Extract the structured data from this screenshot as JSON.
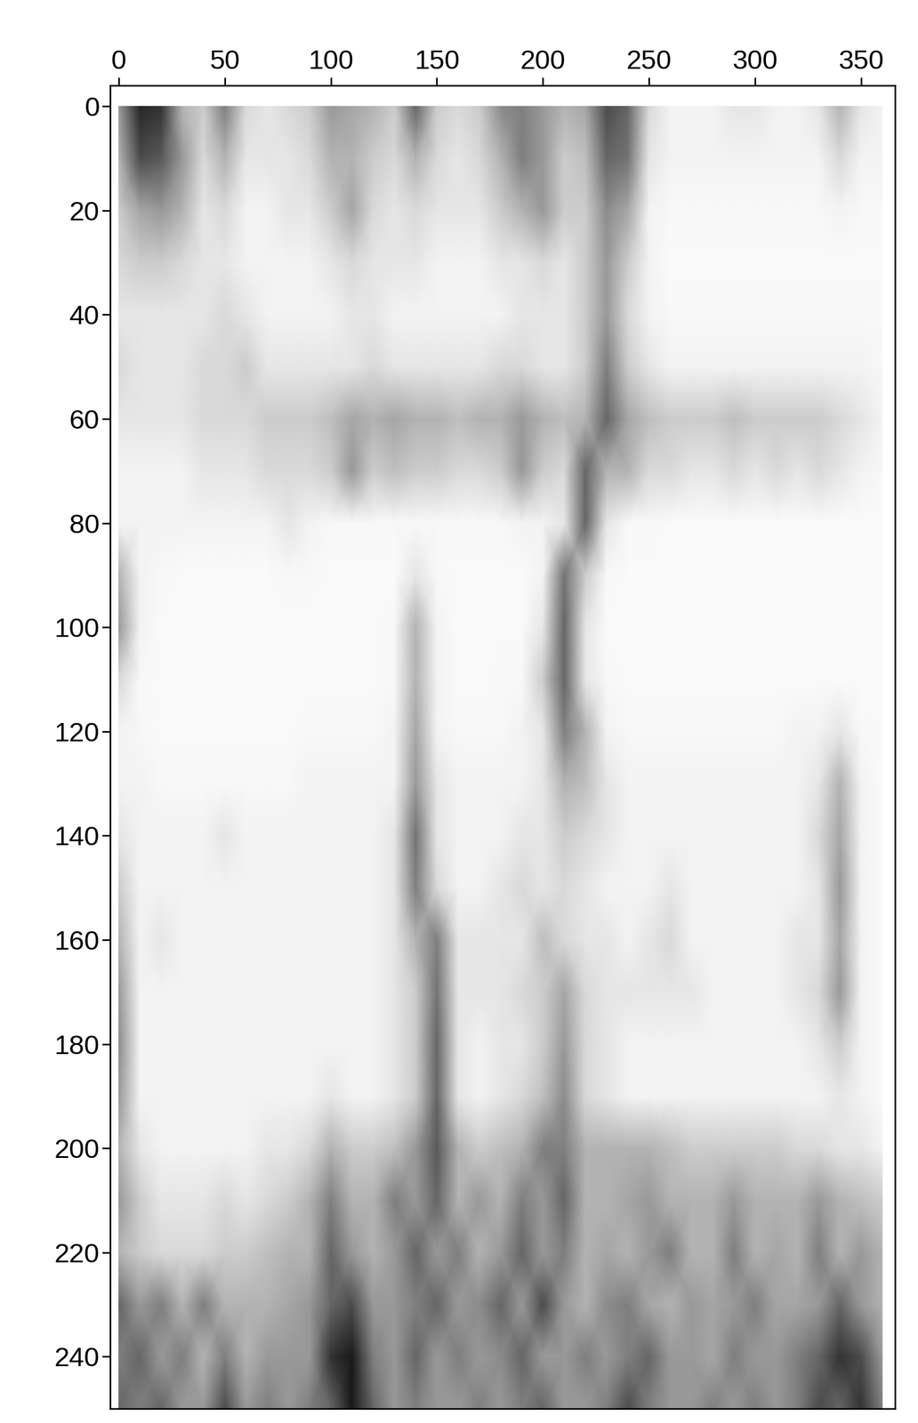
{
  "chart_data": {
    "type": "heatmap",
    "x": [
      0,
      10,
      20,
      30,
      40,
      50,
      60,
      70,
      80,
      90,
      100,
      110,
      120,
      130,
      140,
      150,
      160,
      170,
      180,
      190,
      200,
      210,
      220,
      230,
      240,
      250,
      260,
      270,
      280,
      290,
      300,
      310,
      320,
      330,
      340,
      350,
      360
    ],
    "y": [
      0,
      10,
      20,
      30,
      40,
      50,
      60,
      70,
      80,
      90,
      100,
      110,
      120,
      130,
      140,
      150,
      160,
      170,
      180,
      190,
      200,
      210,
      220,
      230,
      240,
      250
    ],
    "xlim": [
      -4,
      366
    ],
    "ylim": [
      250,
      -4
    ],
    "xticks": [
      0,
      50,
      100,
      150,
      200,
      250,
      300,
      350
    ],
    "yticks": [
      0,
      20,
      40,
      60,
      80,
      100,
      120,
      140,
      160,
      180,
      200,
      220,
      240
    ],
    "clim": [
      0,
      1
    ],
    "color": "gray_r",
    "cells": [
      [
        0.4,
        0.85,
        0.8,
        0.3,
        0.2,
        0.5,
        0.15,
        0.1,
        0.15,
        0.2,
        0.4,
        0.35,
        0.3,
        0.2,
        0.6,
        0.2,
        0.15,
        0.2,
        0.45,
        0.5,
        0.4,
        0.3,
        0.35,
        0.7,
        0.6,
        0.15,
        0.05,
        0.05,
        0.05,
        0.1,
        0.1,
        0.05,
        0.05,
        0.1,
        0.3,
        0.1,
        0.05
      ],
      [
        0.3,
        0.7,
        0.65,
        0.4,
        0.15,
        0.3,
        0.1,
        0.1,
        0.1,
        0.15,
        0.3,
        0.3,
        0.2,
        0.15,
        0.3,
        0.15,
        0.1,
        0.15,
        0.3,
        0.5,
        0.4,
        0.2,
        0.25,
        0.6,
        0.55,
        0.1,
        0.05,
        0.05,
        0.05,
        0.05,
        0.05,
        0.05,
        0.05,
        0.05,
        0.15,
        0.05,
        0.05
      ],
      [
        0.2,
        0.35,
        0.4,
        0.3,
        0.1,
        0.15,
        0.05,
        0.05,
        0.1,
        0.1,
        0.2,
        0.35,
        0.15,
        0.1,
        0.15,
        0.1,
        0.1,
        0.1,
        0.2,
        0.3,
        0.4,
        0.2,
        0.2,
        0.45,
        0.35,
        0.05,
        0.03,
        0.03,
        0.03,
        0.03,
        0.03,
        0.03,
        0.03,
        0.03,
        0.05,
        0.03,
        0.03
      ],
      [
        0.15,
        0.2,
        0.2,
        0.15,
        0.1,
        0.1,
        0.05,
        0.05,
        0.05,
        0.05,
        0.1,
        0.15,
        0.1,
        0.1,
        0.1,
        0.05,
        0.05,
        0.05,
        0.1,
        0.1,
        0.15,
        0.1,
        0.2,
        0.4,
        0.2,
        0.05,
        0.02,
        0.02,
        0.02,
        0.02,
        0.02,
        0.02,
        0.02,
        0.02,
        0.02,
        0.02,
        0.02
      ],
      [
        0.1,
        0.1,
        0.1,
        0.1,
        0.1,
        0.15,
        0.1,
        0.05,
        0.05,
        0.05,
        0.05,
        0.1,
        0.1,
        0.05,
        0.05,
        0.05,
        0.05,
        0.05,
        0.05,
        0.1,
        0.1,
        0.1,
        0.2,
        0.4,
        0.15,
        0.05,
        0.03,
        0.03,
        0.03,
        0.03,
        0.03,
        0.03,
        0.03,
        0.03,
        0.03,
        0.03,
        0.03
      ],
      [
        0.15,
        0.1,
        0.1,
        0.1,
        0.15,
        0.15,
        0.2,
        0.1,
        0.1,
        0.1,
        0.1,
        0.1,
        0.15,
        0.1,
        0.1,
        0.1,
        0.1,
        0.1,
        0.15,
        0.15,
        0.1,
        0.1,
        0.2,
        0.5,
        0.2,
        0.1,
        0.05,
        0.05,
        0.05,
        0.05,
        0.05,
        0.05,
        0.05,
        0.05,
        0.05,
        0.05,
        0.03
      ],
      [
        0.1,
        0.1,
        0.1,
        0.1,
        0.15,
        0.15,
        0.15,
        0.2,
        0.2,
        0.2,
        0.25,
        0.35,
        0.3,
        0.35,
        0.3,
        0.3,
        0.25,
        0.3,
        0.3,
        0.4,
        0.3,
        0.25,
        0.3,
        0.6,
        0.35,
        0.25,
        0.2,
        0.2,
        0.2,
        0.25,
        0.2,
        0.2,
        0.2,
        0.2,
        0.15,
        0.1,
        0.05
      ],
      [
        0.05,
        0.05,
        0.05,
        0.05,
        0.1,
        0.1,
        0.1,
        0.15,
        0.15,
        0.15,
        0.2,
        0.4,
        0.2,
        0.25,
        0.2,
        0.2,
        0.15,
        0.15,
        0.2,
        0.4,
        0.2,
        0.15,
        0.6,
        0.3,
        0.3,
        0.15,
        0.15,
        0.1,
        0.1,
        0.15,
        0.1,
        0.15,
        0.1,
        0.15,
        0.1,
        0.05,
        0.03
      ],
      [
        0.05,
        0.05,
        0.05,
        0.05,
        0.05,
        0.05,
        0.05,
        0.05,
        0.1,
        0.05,
        0.03,
        0.03,
        0.03,
        0.03,
        0.03,
        0.03,
        0.03,
        0.03,
        0.03,
        0.05,
        0.05,
        0.1,
        0.6,
        0.1,
        0.03,
        0.03,
        0.02,
        0.02,
        0.02,
        0.02,
        0.02,
        0.02,
        0.02,
        0.02,
        0.02,
        0.02,
        0.02
      ],
      [
        0.3,
        0.05,
        0.03,
        0.02,
        0.02,
        0.02,
        0.02,
        0.02,
        0.03,
        0.03,
        0.02,
        0.02,
        0.02,
        0.02,
        0.1,
        0.03,
        0.02,
        0.02,
        0.02,
        0.02,
        0.05,
        0.55,
        0.2,
        0.03,
        0.02,
        0.02,
        0.02,
        0.02,
        0.02,
        0.02,
        0.02,
        0.02,
        0.02,
        0.02,
        0.02,
        0.02,
        0.02
      ],
      [
        0.4,
        0.05,
        0.02,
        0.02,
        0.02,
        0.02,
        0.02,
        0.02,
        0.02,
        0.02,
        0.02,
        0.02,
        0.02,
        0.03,
        0.3,
        0.05,
        0.02,
        0.02,
        0.02,
        0.02,
        0.1,
        0.6,
        0.1,
        0.02,
        0.02,
        0.02,
        0.02,
        0.02,
        0.02,
        0.02,
        0.02,
        0.02,
        0.02,
        0.02,
        0.02,
        0.02,
        0.02
      ],
      [
        0.15,
        0.03,
        0.02,
        0.02,
        0.02,
        0.02,
        0.02,
        0.02,
        0.02,
        0.02,
        0.02,
        0.02,
        0.02,
        0.03,
        0.3,
        0.05,
        0.02,
        0.02,
        0.03,
        0.03,
        0.2,
        0.6,
        0.1,
        0.03,
        0.02,
        0.02,
        0.02,
        0.02,
        0.02,
        0.02,
        0.02,
        0.02,
        0.02,
        0.02,
        0.02,
        0.02,
        0.02
      ],
      [
        0.05,
        0.03,
        0.02,
        0.02,
        0.02,
        0.02,
        0.02,
        0.02,
        0.02,
        0.03,
        0.03,
        0.03,
        0.03,
        0.05,
        0.35,
        0.05,
        0.03,
        0.03,
        0.03,
        0.05,
        0.1,
        0.5,
        0.3,
        0.05,
        0.03,
        0.03,
        0.03,
        0.03,
        0.03,
        0.03,
        0.03,
        0.03,
        0.05,
        0.05,
        0.1,
        0.03,
        0.02
      ],
      [
        0.05,
        0.05,
        0.03,
        0.03,
        0.03,
        0.03,
        0.03,
        0.03,
        0.03,
        0.05,
        0.05,
        0.05,
        0.05,
        0.05,
        0.4,
        0.1,
        0.05,
        0.05,
        0.05,
        0.05,
        0.1,
        0.3,
        0.25,
        0.1,
        0.05,
        0.05,
        0.05,
        0.05,
        0.05,
        0.05,
        0.05,
        0.05,
        0.05,
        0.1,
        0.3,
        0.05,
        0.02
      ],
      [
        0.1,
        0.05,
        0.05,
        0.05,
        0.05,
        0.1,
        0.05,
        0.05,
        0.05,
        0.05,
        0.05,
        0.05,
        0.05,
        0.1,
        0.55,
        0.1,
        0.05,
        0.05,
        0.05,
        0.1,
        0.1,
        0.2,
        0.15,
        0.1,
        0.05,
        0.05,
        0.05,
        0.05,
        0.05,
        0.05,
        0.05,
        0.05,
        0.05,
        0.15,
        0.35,
        0.05,
        0.02
      ],
      [
        0.2,
        0.05,
        0.05,
        0.05,
        0.05,
        0.05,
        0.05,
        0.05,
        0.05,
        0.05,
        0.05,
        0.05,
        0.05,
        0.1,
        0.5,
        0.15,
        0.05,
        0.05,
        0.1,
        0.15,
        0.1,
        0.15,
        0.1,
        0.05,
        0.05,
        0.05,
        0.1,
        0.05,
        0.05,
        0.05,
        0.05,
        0.05,
        0.05,
        0.1,
        0.4,
        0.05,
        0.02
      ],
      [
        0.3,
        0.05,
        0.1,
        0.05,
        0.05,
        0.05,
        0.05,
        0.05,
        0.05,
        0.05,
        0.05,
        0.05,
        0.05,
        0.1,
        0.3,
        0.5,
        0.1,
        0.1,
        0.1,
        0.1,
        0.25,
        0.15,
        0.1,
        0.1,
        0.05,
        0.1,
        0.15,
        0.05,
        0.05,
        0.05,
        0.05,
        0.05,
        0.1,
        0.1,
        0.35,
        0.05,
        0.02
      ],
      [
        0.4,
        0.05,
        0.05,
        0.05,
        0.05,
        0.05,
        0.05,
        0.05,
        0.05,
        0.05,
        0.05,
        0.05,
        0.05,
        0.1,
        0.2,
        0.55,
        0.1,
        0.1,
        0.1,
        0.15,
        0.2,
        0.35,
        0.15,
        0.1,
        0.1,
        0.1,
        0.1,
        0.1,
        0.05,
        0.05,
        0.05,
        0.05,
        0.1,
        0.15,
        0.4,
        0.05,
        0.02
      ],
      [
        0.45,
        0.05,
        0.05,
        0.05,
        0.05,
        0.05,
        0.05,
        0.05,
        0.05,
        0.05,
        0.05,
        0.05,
        0.05,
        0.1,
        0.2,
        0.6,
        0.1,
        0.05,
        0.1,
        0.1,
        0.2,
        0.4,
        0.15,
        0.1,
        0.05,
        0.05,
        0.05,
        0.05,
        0.05,
        0.05,
        0.05,
        0.05,
        0.05,
        0.1,
        0.2,
        0.05,
        0.02
      ],
      [
        0.4,
        0.05,
        0.05,
        0.05,
        0.05,
        0.05,
        0.05,
        0.05,
        0.05,
        0.05,
        0.1,
        0.05,
        0.05,
        0.1,
        0.2,
        0.6,
        0.1,
        0.05,
        0.1,
        0.15,
        0.25,
        0.45,
        0.15,
        0.1,
        0.05,
        0.05,
        0.05,
        0.05,
        0.05,
        0.05,
        0.05,
        0.05,
        0.05,
        0.05,
        0.1,
        0.05,
        0.02
      ],
      [
        0.3,
        0.1,
        0.05,
        0.05,
        0.05,
        0.05,
        0.05,
        0.1,
        0.1,
        0.15,
        0.3,
        0.2,
        0.2,
        0.25,
        0.4,
        0.65,
        0.3,
        0.2,
        0.25,
        0.3,
        0.5,
        0.5,
        0.3,
        0.3,
        0.3,
        0.3,
        0.25,
        0.2,
        0.2,
        0.2,
        0.2,
        0.2,
        0.15,
        0.15,
        0.1,
        0.1,
        0.05
      ],
      [
        0.4,
        0.2,
        0.1,
        0.1,
        0.1,
        0.15,
        0.1,
        0.15,
        0.2,
        0.3,
        0.5,
        0.3,
        0.3,
        0.5,
        0.4,
        0.6,
        0.3,
        0.4,
        0.3,
        0.5,
        0.4,
        0.6,
        0.3,
        0.3,
        0.35,
        0.4,
        0.3,
        0.3,
        0.3,
        0.4,
        0.3,
        0.3,
        0.3,
        0.4,
        0.3,
        0.25,
        0.2
      ],
      [
        0.3,
        0.2,
        0.15,
        0.15,
        0.15,
        0.2,
        0.2,
        0.25,
        0.3,
        0.3,
        0.6,
        0.4,
        0.3,
        0.4,
        0.6,
        0.4,
        0.5,
        0.3,
        0.4,
        0.6,
        0.4,
        0.5,
        0.3,
        0.35,
        0.3,
        0.4,
        0.5,
        0.3,
        0.3,
        0.5,
        0.3,
        0.35,
        0.3,
        0.5,
        0.3,
        0.4,
        0.3
      ],
      [
        0.6,
        0.4,
        0.5,
        0.3,
        0.5,
        0.3,
        0.3,
        0.3,
        0.35,
        0.4,
        0.6,
        0.7,
        0.4,
        0.4,
        0.5,
        0.6,
        0.4,
        0.45,
        0.6,
        0.4,
        0.7,
        0.4,
        0.3,
        0.45,
        0.5,
        0.35,
        0.3,
        0.4,
        0.35,
        0.4,
        0.5,
        0.35,
        0.35,
        0.4,
        0.6,
        0.4,
        0.3
      ],
      [
        0.5,
        0.6,
        0.4,
        0.5,
        0.3,
        0.5,
        0.3,
        0.4,
        0.4,
        0.4,
        0.8,
        0.9,
        0.5,
        0.4,
        0.6,
        0.4,
        0.5,
        0.4,
        0.45,
        0.6,
        0.4,
        0.4,
        0.5,
        0.4,
        0.5,
        0.6,
        0.4,
        0.4,
        0.35,
        0.5,
        0.4,
        0.4,
        0.5,
        0.6,
        0.8,
        0.7,
        0.4
      ],
      [
        0.6,
        0.5,
        0.6,
        0.4,
        0.4,
        0.7,
        0.4,
        0.5,
        0.4,
        0.5,
        0.6,
        0.9,
        0.6,
        0.4,
        0.5,
        0.4,
        0.4,
        0.5,
        0.4,
        0.5,
        0.6,
        0.4,
        0.4,
        0.5,
        0.7,
        0.5,
        0.4,
        0.4,
        0.5,
        0.4,
        0.5,
        0.4,
        0.5,
        0.7,
        0.6,
        0.8,
        0.5
      ]
    ]
  }
}
